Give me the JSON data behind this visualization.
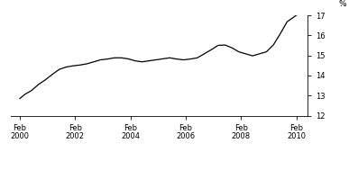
{
  "title": "",
  "ylabel": "%",
  "ylim": [
    12,
    17
  ],
  "yticks": [
    12,
    13,
    14,
    15,
    16,
    17
  ],
  "xtick_labels": [
    "Feb\n2000",
    "Feb\n2002",
    "Feb\n2004",
    "Feb\n2006",
    "Feb\n2008",
    "Feb\n2010"
  ],
  "xtick_positions": [
    2000.08,
    2002.08,
    2004.08,
    2006.08,
    2008.08,
    2010.08
  ],
  "line_color": "#000000",
  "line_width": 0.9,
  "background_color": "#ffffff",
  "x": [
    2000.08,
    2000.25,
    2000.5,
    2000.75,
    2001.0,
    2001.25,
    2001.5,
    2001.75,
    2002.0,
    2002.25,
    2002.5,
    2002.75,
    2003.0,
    2003.25,
    2003.5,
    2003.75,
    2004.0,
    2004.25,
    2004.5,
    2004.75,
    2005.0,
    2005.25,
    2005.5,
    2005.75,
    2006.0,
    2006.25,
    2006.5,
    2006.75,
    2007.0,
    2007.25,
    2007.5,
    2007.75,
    2008.0,
    2008.25,
    2008.5,
    2008.75,
    2009.0,
    2009.25,
    2009.5,
    2009.75,
    2010.08
  ],
  "y": [
    12.85,
    13.05,
    13.25,
    13.55,
    13.78,
    14.05,
    14.3,
    14.42,
    14.48,
    14.52,
    14.58,
    14.68,
    14.78,
    14.82,
    14.88,
    14.88,
    14.83,
    14.73,
    14.68,
    14.73,
    14.78,
    14.83,
    14.88,
    14.82,
    14.78,
    14.82,
    14.88,
    15.08,
    15.28,
    15.5,
    15.52,
    15.38,
    15.18,
    15.08,
    14.98,
    15.08,
    15.18,
    15.52,
    16.08,
    16.68,
    17.0
  ]
}
